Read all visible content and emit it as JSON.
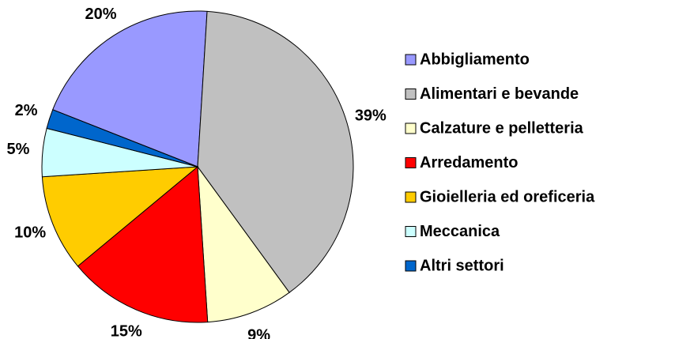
{
  "chart_data": {
    "type": "pie",
    "categories": [
      "Abbigliamento",
      "Alimentari e bevande",
      "Calzature e pelletteria",
      "Arredamento",
      "Gioielleria ed oreficeria",
      "Meccanica",
      "Altri settori"
    ],
    "values": [
      20,
      39,
      9,
      15,
      10,
      5,
      2
    ],
    "value_labels": [
      "20%",
      "39%",
      "9%",
      "15%",
      "10%",
      "5%",
      "2%"
    ],
    "colors": [
      "#9999ff",
      "#c0c0c0",
      "#ffffcc",
      "#ff0000",
      "#ffcc00",
      "#ccffff",
      "#0066cc"
    ],
    "legend": "right"
  }
}
